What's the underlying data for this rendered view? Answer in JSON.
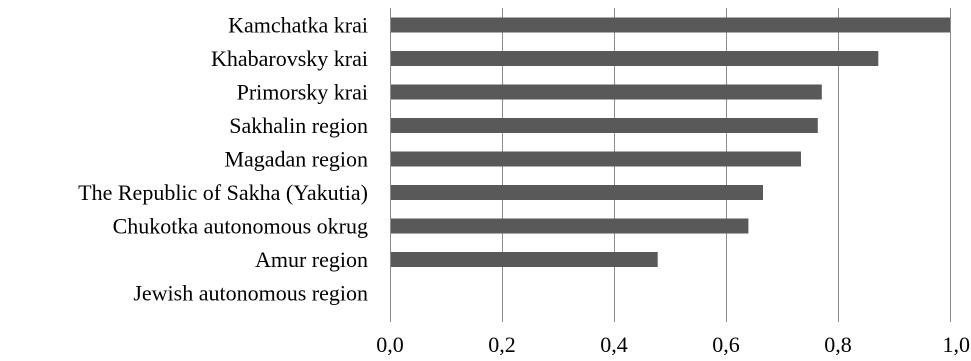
{
  "chart_data": {
    "type": "bar",
    "orientation": "horizontal",
    "categories": [
      "Kamchatka krai",
      "Khabarovsky krai",
      "Primorsky krai",
      "Sakhalin region",
      "Magadan region",
      "The Republic of Sakha (Yakutia)",
      "Chukotka autonomous okrug",
      "Amur region",
      "Jewish autonomous region"
    ],
    "values": [
      1.0,
      0.872,
      0.771,
      0.764,
      0.734,
      0.666,
      0.64,
      0.478,
      0.0
    ],
    "xlim": [
      0,
      1
    ],
    "xticks": [
      0,
      0.2,
      0.4,
      0.6,
      0.8,
      1.0
    ],
    "xtick_labels": [
      "0,0",
      "0,2",
      "0,4",
      "0,6",
      "0,8",
      "1,0"
    ],
    "grid": "vertical",
    "colors": {
      "bar": "#595959",
      "grid": "#8c8c8c"
    }
  }
}
